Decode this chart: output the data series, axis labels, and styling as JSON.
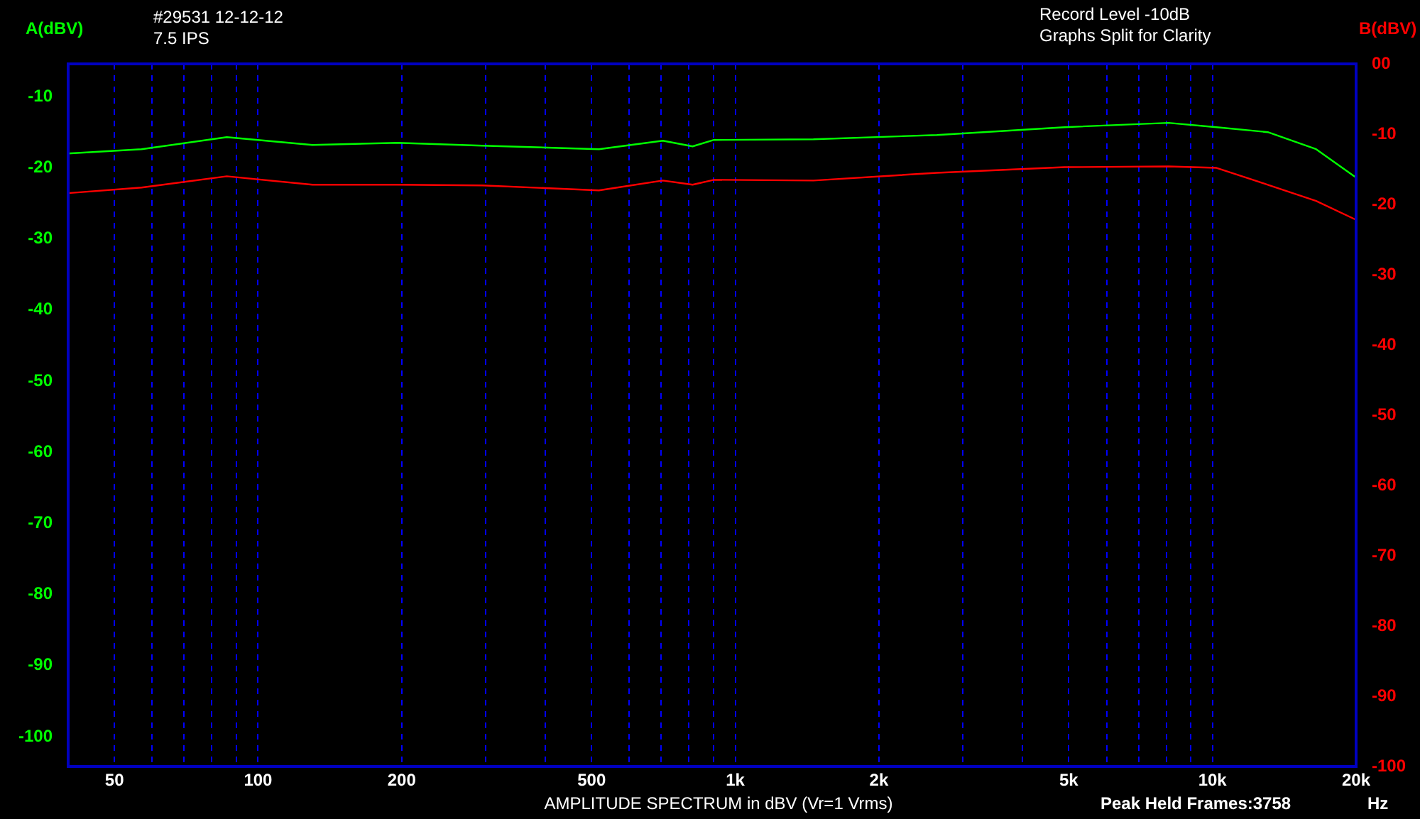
{
  "chart_data": {
    "type": "line",
    "xlabel": "AMPLITUDE SPECTRUM in dBV (Vr=1 Vrms)",
    "ylabel": "A(dBV)",
    "y2label": "B(dBV)",
    "annotations": [
      "#29531  12-12-12",
      "7.5 IPS",
      "Record Level -10dB",
      "Graphs Split for Clarity",
      "Peak Held Frames:3758",
      "Hz"
    ],
    "x": [
      40,
      57,
      86,
      130,
      196,
      295,
      518,
      705,
      814,
      902,
      1458,
      2646,
      4900,
      8090,
      10200,
      13060,
      16490,
      20000
    ],
    "series": [
      {
        "color": "#00ff00",
        "values": [
          -18.0,
          -17.4,
          -15.7,
          -16.8,
          -16.5,
          -16.9,
          -17.4,
          -16.2,
          -17.0,
          -16.1,
          -16.0,
          -15.4,
          -14.3,
          -13.7,
          -14.3,
          -15.0,
          -17.4,
          -21.4
        ]
      },
      {
        "color": "#ff0000",
        "axis": "y2",
        "values": [
          -18.4,
          -17.6,
          -16.0,
          -17.2,
          -17.2,
          -17.3,
          -18.0,
          -16.6,
          -17.2,
          -16.5,
          -16.6,
          -15.5,
          -14.7,
          -14.6,
          -14.8,
          -17.2,
          -19.5,
          -22.2
        ]
      }
    ],
    "log": "x",
    "grid": "x",
    "xlim": [
      40,
      20000
    ],
    "ylim": [
      -104.2,
      -5.4
    ],
    "y2lim": [
      -100,
      0
    ],
    "xticks": [
      50,
      {
        "value": 60,
        "label": null
      },
      {
        "value": 70,
        "label": null
      },
      {
        "value": 80,
        "label": null
      },
      {
        "value": 90,
        "label": null
      },
      100,
      200,
      {
        "value": 300,
        "label": null
      },
      {
        "value": 400,
        "label": null
      },
      500,
      {
        "value": 600,
        "label": null
      },
      {
        "value": 700,
        "label": null
      },
      {
        "value": 800,
        "label": null
      },
      {
        "value": 900,
        "label": null
      },
      {
        "value": 1000,
        "label": "1k"
      },
      {
        "value": 2000,
        "label": "2k"
      },
      {
        "value": 3000,
        "label": null
      },
      {
        "value": 4000,
        "label": null
      },
      {
        "value": 5000,
        "label": "5k"
      },
      {
        "value": 6000,
        "label": null
      },
      {
        "value": 7000,
        "label": null
      },
      {
        "value": 8000,
        "label": null
      },
      {
        "value": 9000,
        "label": null
      },
      {
        "value": 10000,
        "label": "10k"
      },
      {
        "value": 20000,
        "label": "20k"
      }
    ],
    "yticks": [
      -10,
      -20,
      -30,
      -40,
      -50,
      -60,
      -70,
      -80,
      -90,
      -100
    ],
    "y2ticks": [
      {
        "value": 0,
        "label": "00"
      },
      -10,
      -20,
      -30,
      -40,
      -50,
      -60,
      -70,
      -80,
      -90,
      -100
    ]
  }
}
